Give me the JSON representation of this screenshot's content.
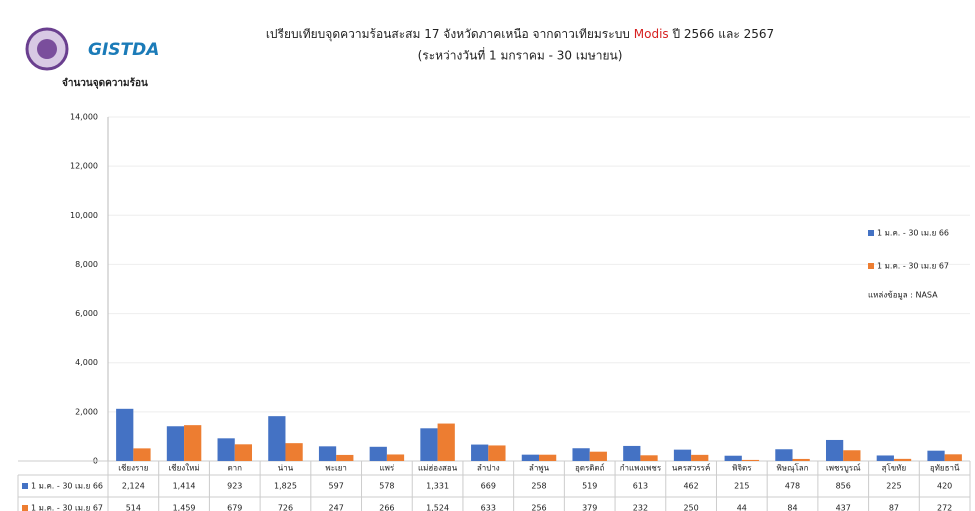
{
  "logo_text": "GISTDA",
  "chart_data": {
    "type": "bar",
    "title": [
      "เปรียบเทียบจุดความร้อนสะสม 17 จังหวัดภาคเหนือ จากดาวเทียมระบบ ",
      "Modis",
      " ปี 2566 และ 2567"
    ],
    "subtitle": "(ระหว่างวันที่ 1 มกราคม - 30 เมษายน)",
    "y_label": "จำนวนจุดความร้อน",
    "source": "แหล่งข้อมูล : NASA",
    "categories": [
      "เชียงราย",
      "เชียงใหม่",
      "ตาก",
      "น่าน",
      "พะเยา",
      "แพร่",
      "แม่ฮ่องสอน",
      "ลำปาง",
      "ลำพูน",
      "อุตรดิตถ์",
      "กำแพงเพชร",
      "นครสวรรค์",
      "พิจิตร",
      "พิษณุโลก",
      "เพชรบูรณ์",
      "สุโขทัย",
      "อุทัยธานี"
    ],
    "series": [
      {
        "name": "1 ม.ค. - 30 เม.ย 66",
        "color": "#4472c4",
        "values": [
          2124,
          1414,
          923,
          1825,
          597,
          578,
          1331,
          669,
          258,
          519,
          613,
          462,
          215,
          478,
          856,
          225,
          420
        ],
        "value_labels": [
          "2,124",
          "1,414",
          "923",
          "1,825",
          "597",
          "578",
          "1,331",
          "669",
          "258",
          "519",
          "613",
          "462",
          "215",
          "478",
          "856",
          "225",
          "420"
        ]
      },
      {
        "name": "1 ม.ค. - 30 เม.ย 67",
        "color": "#ed7d31",
        "values": [
          514,
          1459,
          679,
          726,
          247,
          266,
          1524,
          633,
          256,
          379,
          232,
          250,
          44,
          84,
          437,
          87,
          272
        ],
        "value_labels": [
          "514",
          "1,459",
          "679",
          "726",
          "247",
          "266",
          "1,524",
          "633",
          "256",
          "379",
          "232",
          "250",
          "44",
          "84",
          "437",
          "87",
          "272"
        ]
      }
    ],
    "ylim": [
      0,
      14000
    ],
    "yticks": [
      0,
      {
        "value": 2000,
        "label": "2,000"
      },
      {
        "value": 4000,
        "label": "4,000"
      },
      {
        "value": 6000,
        "label": "6,000"
      },
      {
        "value": 8000,
        "label": "8,000"
      },
      {
        "value": 10000,
        "label": "10,000"
      },
      {
        "value": 12000,
        "label": "12,000"
      },
      {
        "value": 14000,
        "label": "14,000"
      }
    ],
    "grid": true
  }
}
